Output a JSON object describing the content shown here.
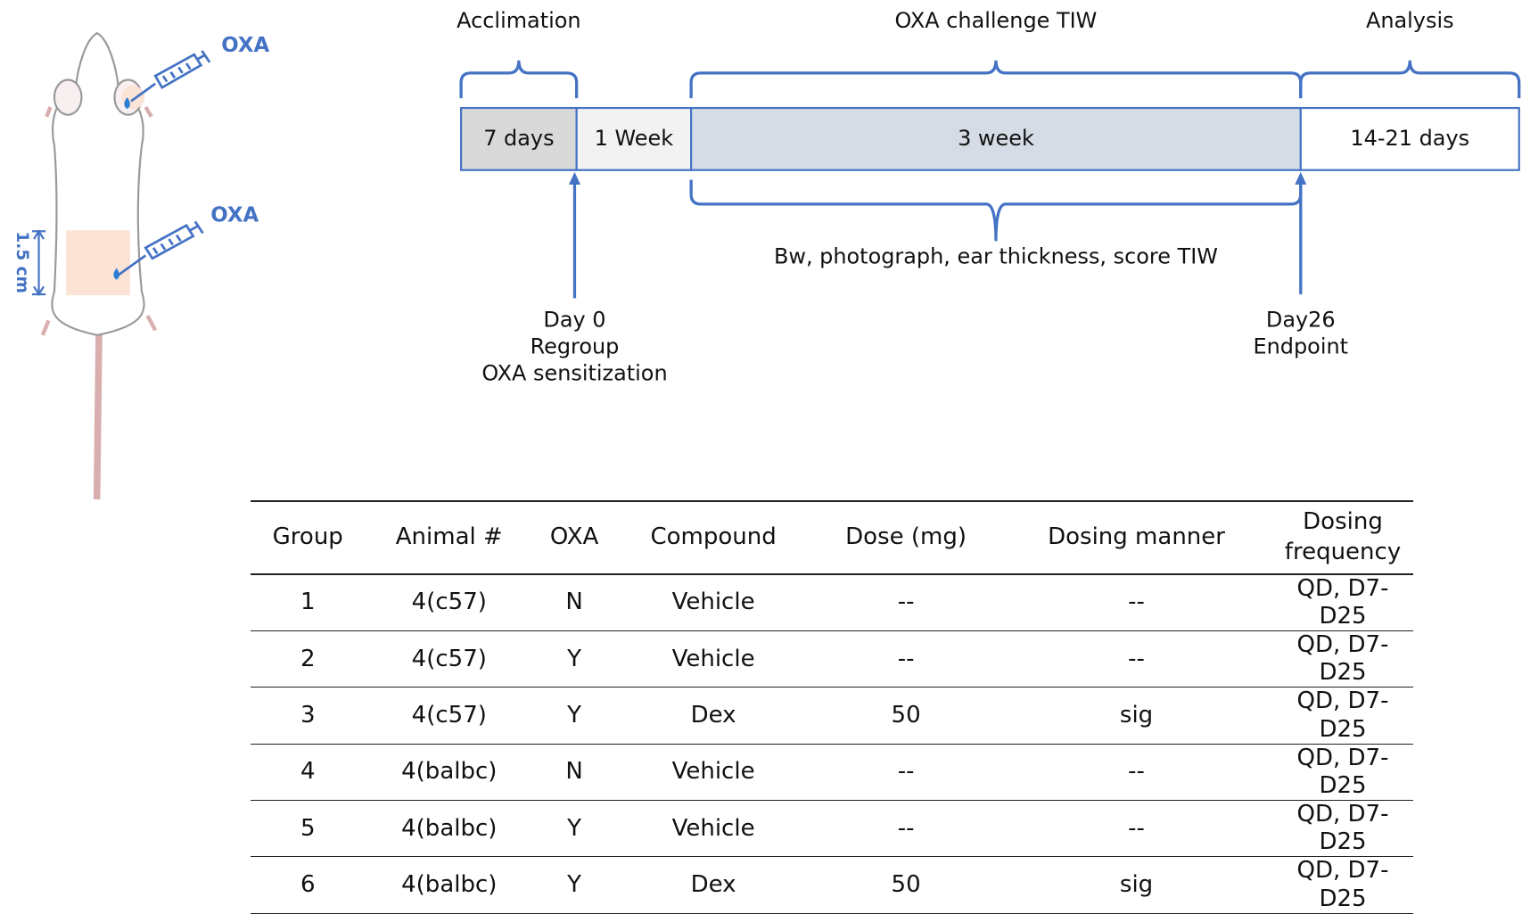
{
  "mouse": {
    "labels": [
      "OXA",
      "OXA"
    ],
    "scale_label": "1.5 cm"
  },
  "timeline": {
    "phases": [
      "Acclimation",
      "OXA challenge TIW",
      "Analysis"
    ],
    "segments": [
      "7 days",
      "1 Week",
      "3 week",
      "14-21 days"
    ],
    "bottom_note": "Bw, photograph, ear thickness, score TIW",
    "milestones": [
      [
        "Day 0",
        "Regroup",
        "OXA sensitization"
      ],
      [
        "Day26",
        "Endpoint"
      ]
    ]
  },
  "table": {
    "header": [
      "Group",
      "Animal #",
      "OXA",
      "Compound",
      "Dose (mg)",
      "Dosing manner",
      "Dosing frequency"
    ],
    "rows": [
      [
        "1",
        "4(c57)",
        "N",
        "Vehicle",
        "--",
        "--",
        "QD, D7-D25"
      ],
      [
        "2",
        "4(c57)",
        "Y",
        "Vehicle",
        "--",
        "--",
        "QD, D7-D25"
      ],
      [
        "3",
        "4(c57)",
        "Y",
        "Dex",
        "50",
        "sig",
        "QD, D7-D25"
      ],
      [
        "4",
        "4(balbc)",
        "N",
        "Vehicle",
        "--",
        "--",
        "QD, D7-D25"
      ],
      [
        "5",
        "4(balbc)",
        "Y",
        "Vehicle",
        "--",
        "--",
        "QD, D7-D25"
      ],
      [
        "6",
        "4(balbc)",
        "Y",
        "Dex",
        "50",
        "sig",
        "QD, D7-D25"
      ]
    ]
  }
}
